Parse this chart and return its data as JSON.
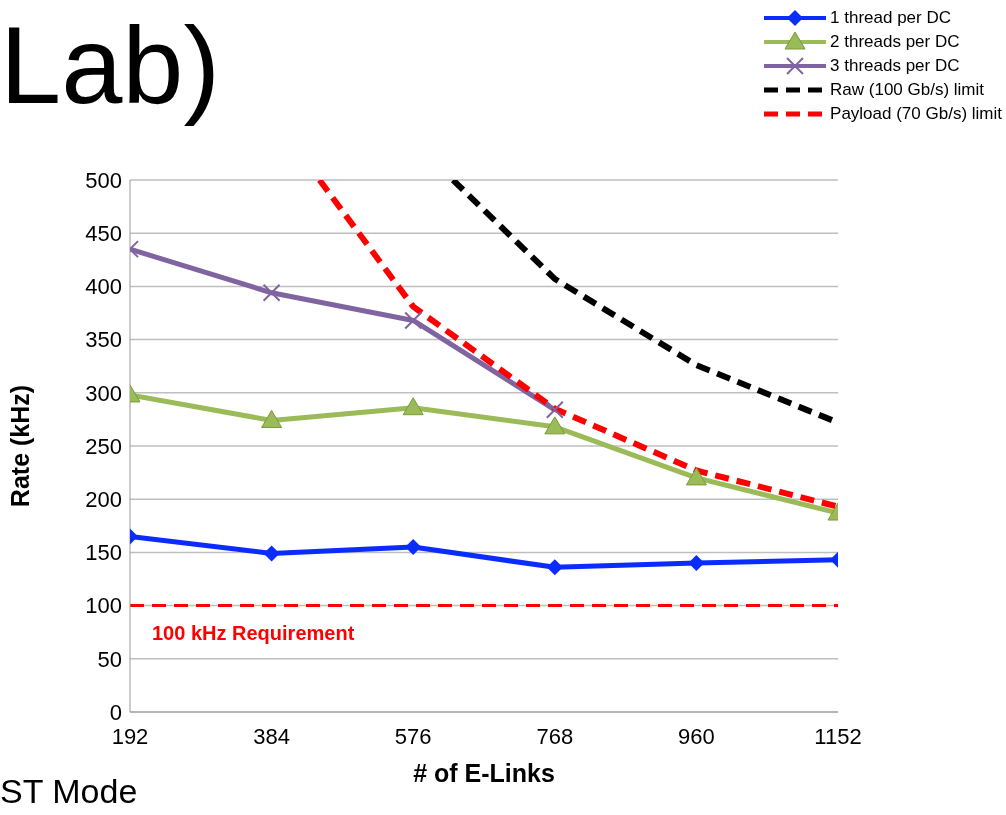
{
  "chart_data": {
    "type": "line",
    "xlabel": "# of E-Links",
    "ylabel": "Rate (kHz)",
    "xlim": [
      192,
      1152
    ],
    "xticks": [
      192,
      384,
      576,
      768,
      960,
      1152
    ],
    "ylim": [
      0,
      500
    ],
    "yticks": [
      0,
      50,
      100,
      150,
      200,
      250,
      300,
      350,
      400,
      450,
      500
    ],
    "grid": "y",
    "legend": "top right",
    "series": [
      {
        "name": "1 thread per DC",
        "color": "#0a2cff",
        "marker": "diamond",
        "line_style": "solid",
        "x": [
          192,
          384,
          576,
          768,
          960,
          1152
        ],
        "values": [
          165,
          149,
          155,
          136,
          140,
          143
        ]
      },
      {
        "name": "2 threads per DC",
        "color": "#9bbb59",
        "marker": "triangle",
        "line_style": "solid",
        "x": [
          192,
          384,
          576,
          768,
          960,
          1152
        ],
        "values": [
          298,
          274,
          286,
          268,
          220,
          187
        ]
      },
      {
        "name": "3 threads per DC",
        "color": "#8064a2",
        "marker": "cross",
        "line_style": "solid",
        "x": [
          192,
          384,
          576,
          768
        ],
        "values": [
          435,
          394,
          368,
          284
        ]
      },
      {
        "name": "Raw (100 Gb/s) limit",
        "color": "#000000",
        "marker": "none",
        "line_style": "dashed",
        "x": [
          630,
          768,
          960,
          1152
        ],
        "values": [
          500,
          407,
          326,
          272
        ]
      },
      {
        "name": "Payload (70 Gb/s) limit",
        "color": "#ff0000",
        "marker": "none",
        "line_style": "dashed",
        "x": [
          449,
          576,
          768,
          960,
          1152
        ],
        "values": [
          500,
          381,
          285,
          227,
          193
        ]
      }
    ],
    "ref_lines": [
      {
        "axis": "y",
        "value": 100,
        "label": "100 kHz Requirement",
        "color": "#ff0000",
        "line_style": "dashed"
      }
    ],
    "annotations": [
      "Lab)",
      "ST Mode"
    ]
  }
}
